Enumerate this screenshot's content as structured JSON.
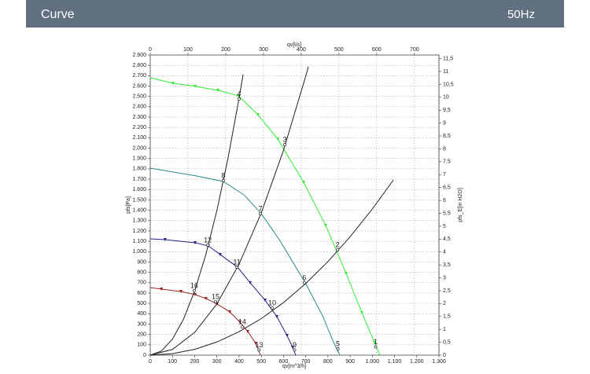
{
  "header": {
    "title": "Curve",
    "frequency": "50Hz"
  },
  "chart_data": {
    "type": "line",
    "xlabel": "qv[m^3/h]",
    "x2label": "qv[l/s]",
    "ylabel": "pfs[Pa]",
    "y2label": "pfs_E[in H2O]",
    "xlim": [
      0,
      1300
    ],
    "ylim": [
      0,
      2900
    ],
    "x2lim": [
      0,
      765
    ],
    "y2lim": [
      0,
      11.64
    ],
    "grid": true,
    "xticks": [
      0,
      100,
      200,
      300,
      400,
      500,
      600,
      700,
      800,
      900,
      {
        "value": 1000,
        "label": "1.000"
      },
      {
        "value": 1100,
        "label": "1.100"
      },
      {
        "value": 1200,
        "label": "1.200"
      },
      {
        "value": 1300,
        "label": "1.300"
      }
    ],
    "x2ticks": [
      0,
      100,
      200,
      300,
      400,
      500,
      600,
      700
    ],
    "yticks": [
      0,
      100,
      200,
      300,
      400,
      500,
      600,
      700,
      800,
      900,
      {
        "value": 1000,
        "label": "1.000"
      },
      {
        "value": 1100,
        "label": "1.100"
      },
      {
        "value": 1200,
        "label": "1.200"
      },
      {
        "value": 1300,
        "label": "1.300"
      },
      {
        "value": 1400,
        "label": "1.400"
      },
      {
        "value": 1500,
        "label": "1.500"
      },
      {
        "value": 1600,
        "label": "1.600"
      },
      {
        "value": 1700,
        "label": "1.700"
      },
      {
        "value": 1800,
        "label": "1.800"
      },
      {
        "value": 1900,
        "label": "1.900"
      },
      {
        "value": 2000,
        "label": "2.000"
      },
      {
        "value": 2100,
        "label": "2.100"
      },
      {
        "value": 2200,
        "label": "2.200"
      },
      {
        "value": 2300,
        "label": "2.300"
      },
      {
        "value": 2400,
        "label": "2.400"
      },
      {
        "value": 2500,
        "label": "2.500"
      },
      {
        "value": 2600,
        "label": "2.600"
      },
      {
        "value": 2700,
        "label": "2.700"
      },
      {
        "value": 2800,
        "label": "2.800"
      },
      {
        "value": 2900,
        "label": "2.900"
      }
    ],
    "y2ticks": [
      0,
      {
        "value": 0.5,
        "label": "0,5"
      },
      1,
      {
        "value": 1.5,
        "label": "1,5"
      },
      2,
      {
        "value": 2.5,
        "label": "2,5"
      },
      3,
      {
        "value": 3.5,
        "label": "3,5"
      },
      4,
      {
        "value": 4.5,
        "label": "4,5"
      },
      5,
      {
        "value": 5.5,
        "label": "5,5"
      },
      6,
      {
        "value": 6.5,
        "label": "6,5"
      },
      7,
      {
        "value": 7.5,
        "label": "7,5"
      },
      8,
      {
        "value": 8.5,
        "label": "8,5"
      },
      9,
      {
        "value": 9.5,
        "label": "9,5"
      },
      10,
      {
        "value": 10.5,
        "label": "10,5"
      },
      11,
      {
        "value": 11.5,
        "label": "11,5"
      }
    ],
    "series": [
      {
        "color": "#33ee33",
        "markers": true,
        "x": [
          0,
          103,
          202,
          305,
          397,
          485,
          574,
          691,
          790,
          882,
          953,
          1010,
          1034
        ],
        "values": [
          2680,
          2627,
          2597,
          2559,
          2506,
          2323,
          2088,
          1670,
          1253,
          790,
          410,
          121,
          0
        ]
      },
      {
        "color": "#2a8a8a",
        "markers": false,
        "x": [
          0,
          209,
          329,
          422,
          500,
          581,
          698,
          776,
          829,
          854
        ],
        "values": [
          1807,
          1731,
          1678,
          1549,
          1367,
          1116,
          699,
          380,
          106,
          0
        ]
      },
      {
        "color": "#222288",
        "markers": true,
        "x": [
          0,
          67,
          202,
          262,
          315,
          393,
          450,
          517,
          570,
          616,
          641,
          655
        ],
        "values": [
          1124,
          1116,
          1086,
          1055,
          972,
          850,
          699,
          531,
          372,
          190,
          76,
          0
        ]
      },
      {
        "color": "#992222",
        "markers": true,
        "x": [
          0,
          50,
          138,
          202,
          251,
          301,
          358,
          404,
          439,
          475,
          496
        ],
        "values": [
          653,
          638,
          615,
          585,
          547,
          494,
          418,
          319,
          228,
          114,
          0
        ]
      },
      {
        "color": "#222222",
        "markers": false,
        "x": [
          0,
          50,
          100,
          150,
          200,
          250,
          300,
          350,
          400,
          418
        ],
        "values": [
          0,
          39,
          155,
          349,
          621,
          970,
          1397,
          1901,
          2483,
          2711
        ]
      },
      {
        "color": "#222222",
        "markers": false,
        "x": [
          0,
          100,
          200,
          300,
          400,
          500,
          600,
          700,
          712
        ],
        "values": [
          0,
          55,
          220,
          495,
          880,
          1375,
          1980,
          2695,
          2788
        ]
      },
      {
        "color": "#222222",
        "markers": false,
        "x": [
          0,
          100,
          200,
          300,
          400,
          500,
          600,
          700,
          800,
          900,
          1000,
          1095
        ],
        "values": [
          0,
          14,
          56,
          127,
          226,
          353,
          508,
          692,
          904,
          1144,
          1412,
          1693
        ]
      }
    ],
    "points": {
      "labels": [
        "1",
        "2",
        "3",
        "4",
        "5",
        "6",
        "7",
        "8",
        "9",
        "10",
        "11",
        "12",
        "13",
        "14",
        "15",
        "16"
      ],
      "x": [
        1015,
        843,
        606,
        400,
        845,
        694,
        496,
        329,
        650,
        549,
        390,
        259,
        490,
        414,
        294,
        198
      ],
      "y": [
        80,
        1017,
        2035,
        2475,
        60,
        699,
        1367,
        1686,
        50,
        456,
        850,
        1063,
        50,
        273,
        516,
        623
      ]
    }
  }
}
